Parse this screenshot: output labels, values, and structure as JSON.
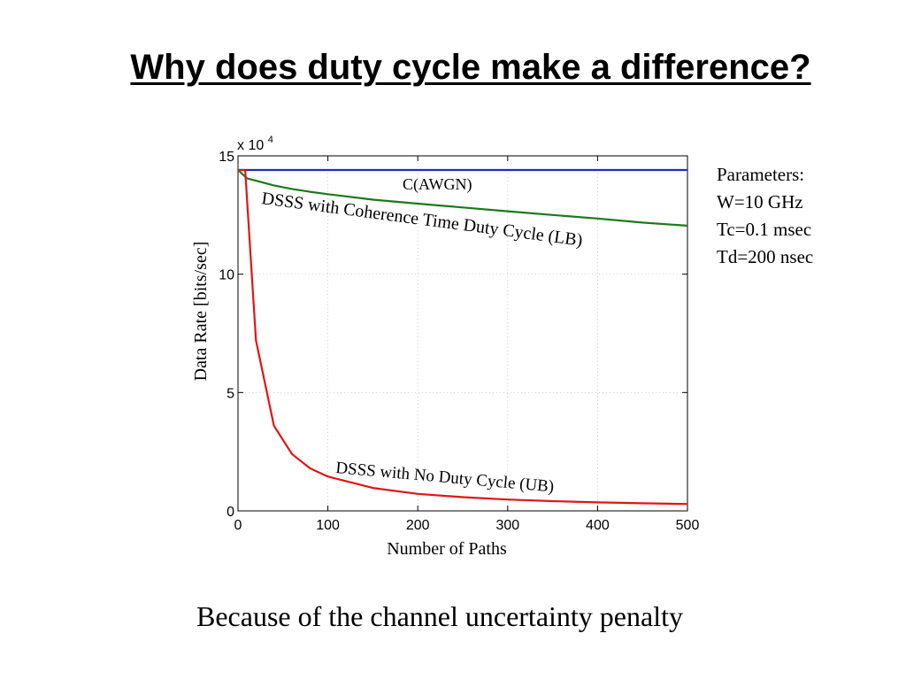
{
  "slide": {
    "title": "Why does duty cycle make a difference?",
    "caption": "Because of the channel uncertainty penalty",
    "parameters": [
      "Parameters:",
      "W=10 GHz",
      "Tc=0.1 msec",
      "Td=200 nsec"
    ]
  },
  "chart_data": {
    "type": "line",
    "title": "",
    "xlabel": "Number of Paths",
    "ylabel": "Data Rate [bits/sec]",
    "y_multiplier_label": "x 10",
    "y_multiplier_exponent": "4",
    "xlim": [
      0,
      500
    ],
    "ylim": [
      0,
      15
    ],
    "x_ticks": [
      0,
      100,
      200,
      300,
      400,
      500
    ],
    "y_ticks": [
      0,
      5,
      10,
      15
    ],
    "grid": true,
    "series": [
      {
        "name": "C(AWGN)",
        "color": "#1f2fb3",
        "x": [
          0,
          500
        ],
        "y": [
          14.4,
          14.4
        ]
      },
      {
        "name": "DSSS with Coherence Time Duty Cycle (LB)",
        "color": "#1a7a1a",
        "x": [
          0,
          10,
          20,
          40,
          60,
          80,
          100,
          150,
          200,
          250,
          300,
          350,
          400,
          450,
          500
        ],
        "y": [
          14.4,
          14.05,
          13.95,
          13.75,
          13.6,
          13.48,
          13.38,
          13.15,
          12.98,
          12.82,
          12.66,
          12.5,
          12.35,
          12.18,
          12.05
        ]
      },
      {
        "name": "DSSS with No Duty Cycle (UB)",
        "color": "#e01515",
        "x": [
          0,
          8,
          20,
          40,
          60,
          80,
          100,
          150,
          200,
          250,
          300,
          350,
          400,
          450,
          500
        ],
        "y": [
          14.4,
          14.4,
          7.2,
          3.6,
          2.4,
          1.8,
          1.45,
          0.97,
          0.72,
          0.58,
          0.48,
          0.41,
          0.36,
          0.32,
          0.29
        ]
      }
    ]
  }
}
